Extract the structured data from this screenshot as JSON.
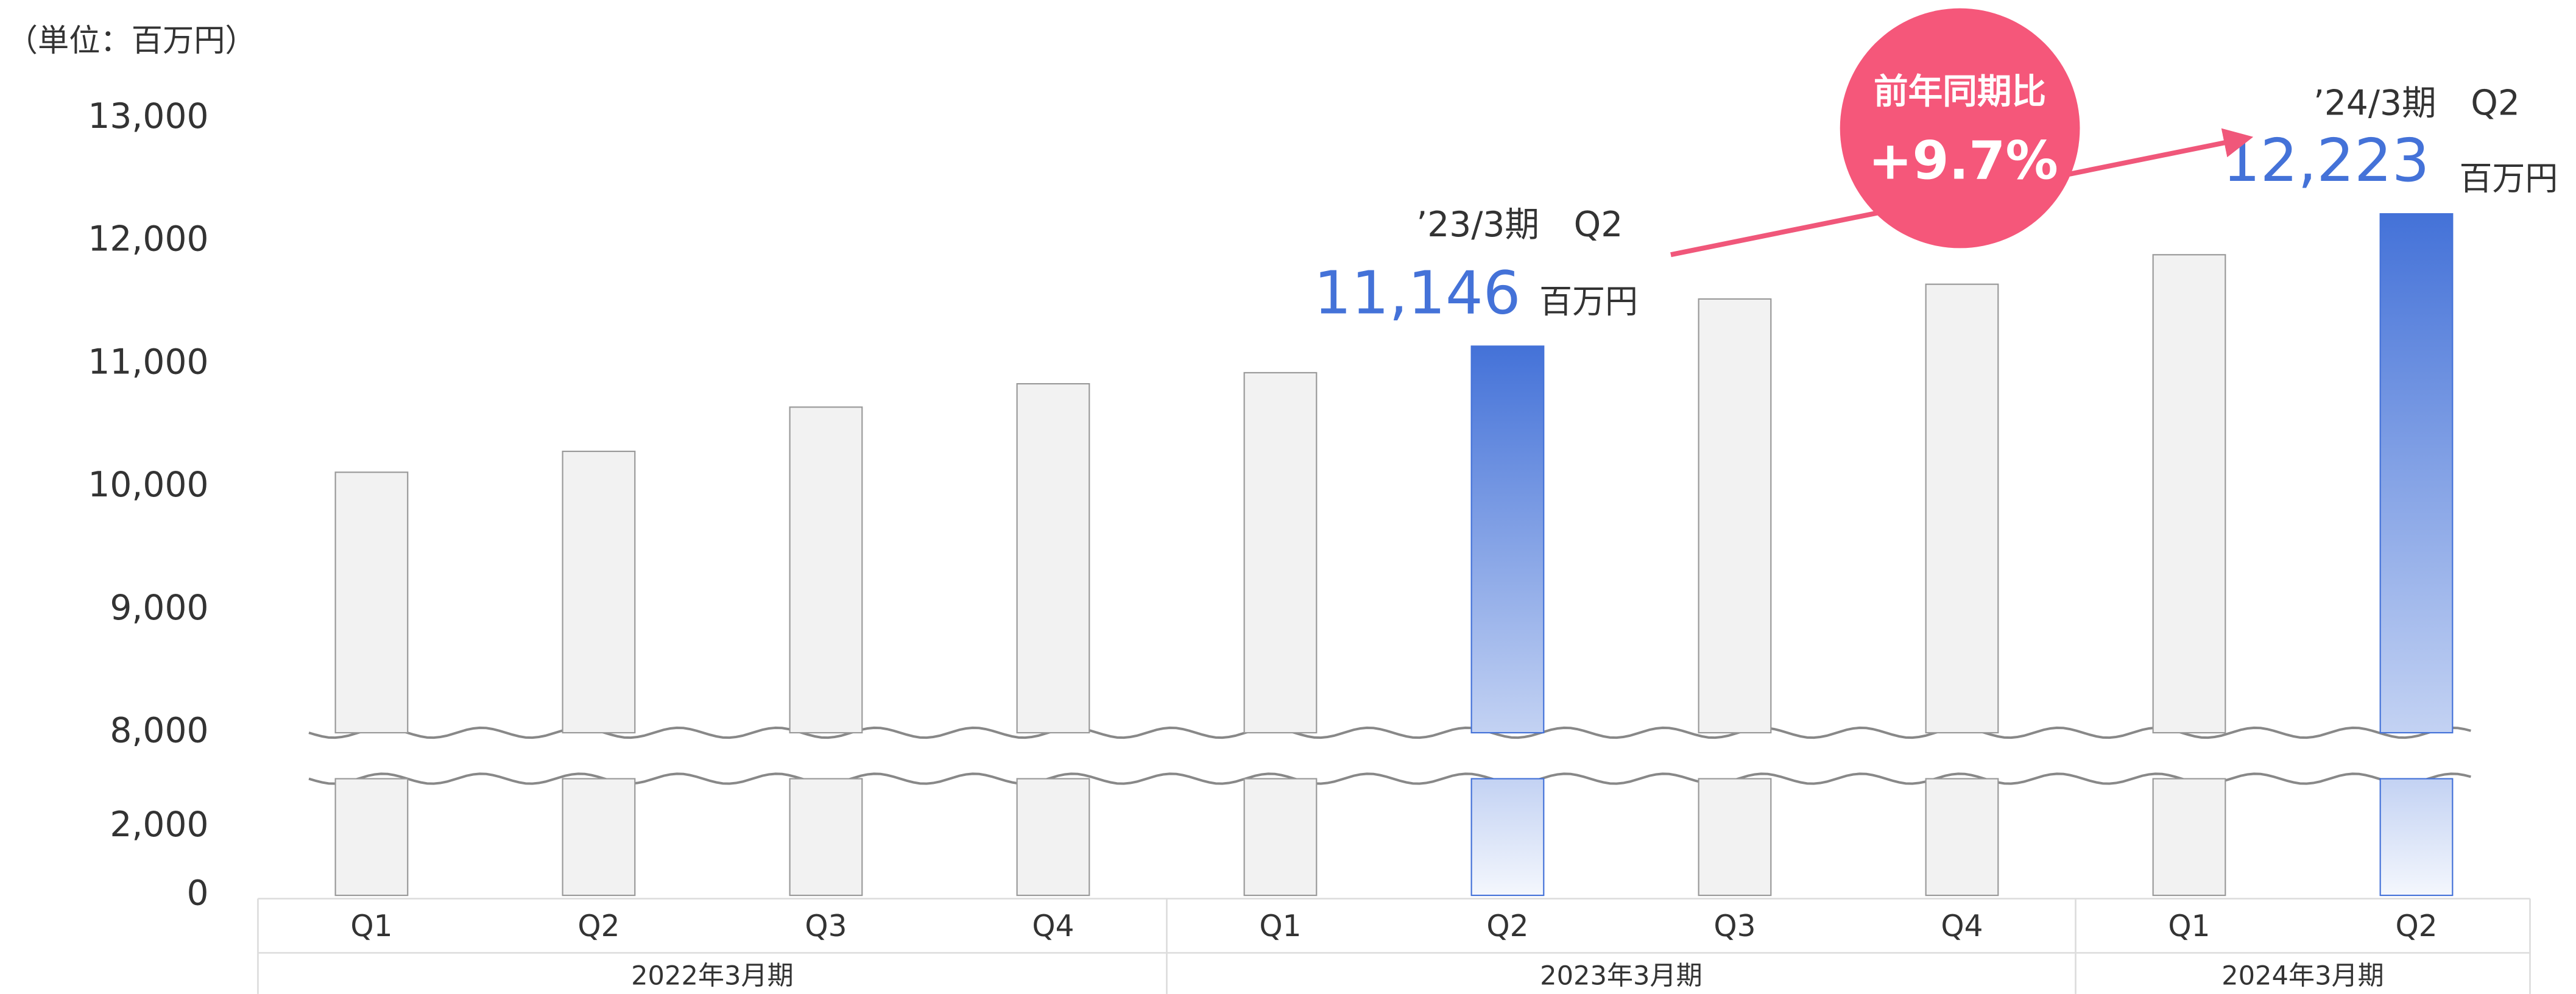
{
  "chart_data": {
    "type": "bar",
    "unit_label": "（単位：百万円）",
    "groups": [
      {
        "name": "2022年3月期",
        "categories": [
          "Q1",
          "Q2",
          "Q3",
          "Q4"
        ]
      },
      {
        "name": "2023年3月期",
        "categories": [
          "Q1",
          "Q2",
          "Q3",
          "Q4"
        ]
      },
      {
        "name": "2024年3月期",
        "categories": [
          "Q1",
          "Q2"
        ]
      }
    ],
    "values": [
      10120,
      10290,
      10650,
      10840,
      10930,
      11146,
      11530,
      11650,
      11890,
      12223
    ],
    "value_labels": [
      null,
      null,
      null,
      null,
      null,
      "11,146",
      null,
      null,
      null,
      "12,223"
    ],
    "highlight": [
      false,
      false,
      false,
      false,
      false,
      true,
      false,
      false,
      false,
      true
    ],
    "color": "#f2f2f2",
    "highlight_color": "#4472d8",
    "ylim": [
      8000,
      13000
    ],
    "yticks": [
      {
        "value": 8000,
        "label": "8,000"
      },
      {
        "value": 9000,
        "label": "9,000"
      },
      {
        "value": 10000,
        "label": "10,000"
      },
      {
        "value": 11000,
        "label": "11,000"
      },
      {
        "value": 12000,
        "label": "12,000"
      },
      {
        "value": 13000,
        "label": "13,000"
      }
    ],
    "axis_break": {
      "ylim": [
        0,
        3400
      ],
      "yticks": [
        0,
        {
          "value": 2000,
          "label": "2,000"
        }
      ]
    },
    "annotations": {
      "prev_period": "’23/3期　Q2",
      "curr_period": "’24/3期　Q2",
      "unit_prev": "百万円",
      "unit_curr": "百万円",
      "yoy_title": "前年同期比",
      "yoy_value": "+9.7%"
    }
  }
}
